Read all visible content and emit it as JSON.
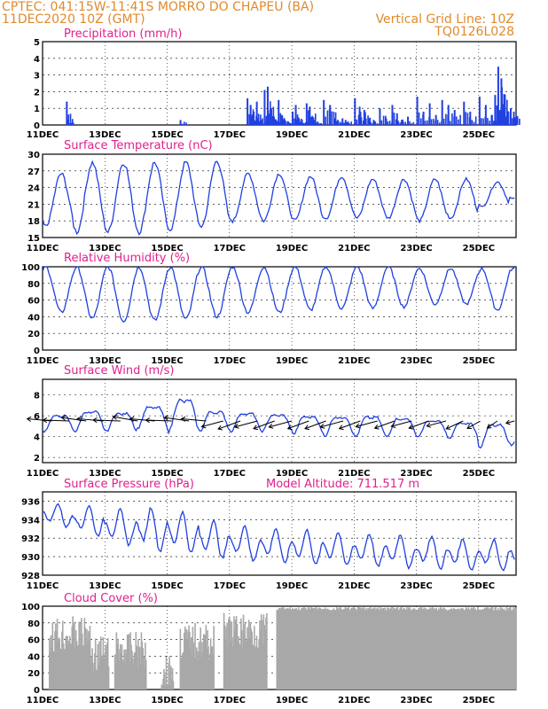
{
  "header": {
    "line1": "CPTEC:   041:15W-11:41S   MORRO DO CHAPEU (BA)",
    "line2": "11DEC2020 10Z (GMT)",
    "grid_note": "Vertical Grid Line: 10Z",
    "model_id": "TQ0126L028",
    "model_altitude": "Model Altitude: 711.517 m"
  },
  "colors": {
    "header": "#e08a2c",
    "title": "#e0208c",
    "line": "#2040e0",
    "cloud": "#a8a8a8",
    "wind": "#000000"
  },
  "x_axis": {
    "tick_labels": [
      "11DEC",
      "13DEC",
      "15DEC",
      "17DEC",
      "19DEC",
      "21DEC",
      "23DEC",
      "25DEC"
    ],
    "tick_days": [
      0,
      2,
      4,
      6,
      8,
      10,
      12,
      14
    ],
    "range_days": [
      0,
      15.2
    ]
  },
  "chart_data": [
    {
      "type": "bar",
      "title": "Precipitation (mm/h)",
      "ylim": [
        0,
        5
      ],
      "y_ticks": [
        0,
        1,
        2,
        3,
        4,
        5
      ],
      "x_days": [
        0.75,
        0.78,
        4.4,
        6.55,
        6.65,
        6.75,
        6.85,
        7.0,
        7.1,
        7.2,
        7.3,
        7.4,
        7.55,
        7.65,
        7.75,
        7.85,
        8.0,
        8.1,
        8.2,
        8.3,
        8.45,
        8.55,
        8.7,
        8.8,
        9.0,
        9.2,
        9.35,
        9.45,
        9.6,
        9.7,
        10.0,
        10.15,
        10.3,
        10.45,
        10.6,
        10.8,
        11.0,
        11.2,
        11.35,
        11.5,
        11.7,
        12.0,
        12.2,
        12.4,
        12.6,
        12.8,
        13.0,
        13.2,
        13.5,
        13.7,
        14.0,
        14.2,
        14.4,
        14.5,
        14.6,
        14.7,
        14.8,
        15.0,
        15.1
      ],
      "values": [
        1.4,
        0.3,
        0.3,
        1.6,
        1.2,
        0.8,
        1.4,
        0.3,
        2.1,
        2.3,
        1.0,
        0.5,
        1.5,
        0.6,
        0.3,
        0.2,
        0.8,
        1.2,
        0.4,
        0.3,
        1.3,
        1.1,
        0.3,
        0.2,
        1.5,
        1.2,
        0.4,
        0.3,
        0.4,
        0.3,
        1.6,
        1.1,
        0.9,
        0.4,
        0.3,
        1.0,
        0.4,
        1.2,
        0.7,
        0.3,
        0.5,
        1.7,
        0.8,
        1.3,
        0.6,
        1.5,
        1.2,
        0.9,
        1.4,
        0.8,
        1.7,
        1.2,
        0.6,
        1.8,
        3.5,
        2.8,
        1.2,
        1.0,
        0.8
      ]
    },
    {
      "type": "line",
      "title": "Surface Temperature (nC)",
      "ylim": [
        15,
        30
      ],
      "y_ticks": [
        15,
        18,
        21,
        24,
        27,
        30
      ],
      "cycle": {
        "peak_phase": 0.6,
        "min_phase": 0.25
      },
      "daily_max": [
        26.5,
        28.5,
        28.5,
        28.5,
        28.5,
        28.8,
        26.5,
        26.5,
        26.0,
        26.0,
        25.5,
        25.5,
        25.5,
        25.5,
        25.0,
        24.5
      ],
      "daily_min": [
        17.0,
        16.0,
        16.0,
        16.0,
        16.5,
        17.0,
        18.0,
        18.0,
        18.0,
        18.5,
        18.5,
        18.5,
        18.0,
        18.5,
        20.5,
        22.0
      ],
      "series": [
        {
          "values_note": ""
        }
      ]
    },
    {
      "type": "line",
      "title": "Relative Humidity (%)",
      "ylim": [
        0,
        100
      ],
      "y_ticks": [
        0,
        20,
        40,
        60,
        80,
        100
      ],
      "daily_max": [
        100,
        100,
        100,
        100,
        100,
        100,
        100,
        100,
        100,
        100,
        100,
        100,
        98,
        98,
        98,
        98
      ],
      "daily_min": [
        45,
        38,
        35,
        35,
        37,
        40,
        45,
        45,
        48,
        50,
        50,
        52,
        55,
        55,
        48,
        55
      ]
    },
    {
      "type": "line",
      "title": "Surface Wind (m/s)",
      "ylim": [
        1.5,
        9.5
      ],
      "y_ticks": [
        2,
        4,
        6,
        8
      ],
      "daily_max": [
        6.5,
        7.0,
        6.8,
        7.5,
        8.5,
        7.0,
        6.8,
        6.6,
        6.5,
        6.5,
        6.5,
        6.3,
        6.0,
        5.8,
        5.8,
        5.5
      ],
      "daily_min": [
        4.5,
        4.5,
        4.5,
        4.8,
        4.5,
        4.5,
        4.5,
        4.5,
        4.2,
        4.0,
        4.0,
        4.0,
        4.0,
        3.8,
        3.0,
        3.2
      ],
      "vectors_days": [
        0.3,
        0.85,
        1.4,
        1.95,
        2.5,
        3.05,
        3.6,
        4.15,
        4.7,
        5.25,
        5.8,
        6.35,
        6.9,
        7.45,
        8.0,
        8.55,
        9.1,
        9.65,
        10.2,
        10.75,
        11.3,
        11.85,
        12.4,
        12.95,
        13.5,
        14.05,
        14.6,
        15.15
      ],
      "vectors_dir_deg": [
        175,
        178,
        172,
        175,
        178,
        170,
        175,
        178,
        172,
        175,
        195,
        200,
        195,
        200,
        195,
        200,
        200,
        195,
        200,
        195,
        200,
        195,
        200,
        195,
        205,
        210,
        215,
        195
      ],
      "vectors_len": [
        1.0,
        1.05,
        1.0,
        1.05,
        1.1,
        1.0,
        1.0,
        1.05,
        1.0,
        1.0,
        0.9,
        0.95,
        0.95,
        0.9,
        0.95,
        0.9,
        0.9,
        0.95,
        0.9,
        0.9,
        0.85,
        0.85,
        0.85,
        0.8,
        0.75,
        0.6,
        0.5,
        0.35
      ]
    },
    {
      "type": "line",
      "title": "Surface Pressure (hPa)",
      "ylim": [
        928,
        937
      ],
      "y_ticks": [
        928,
        930,
        932,
        934,
        936
      ],
      "daily_max": [
        935.8,
        935.6,
        935.2,
        935.5,
        935.0,
        934.0,
        933.5,
        933.2,
        933.0,
        932.8,
        932.6,
        932.5,
        932.3,
        932.0,
        932.0,
        932.0
      ],
      "daily_min": [
        933.0,
        932.0,
        931.0,
        930.2,
        930.0,
        929.5,
        929.2,
        929.0,
        928.8,
        928.7,
        928.6,
        928.5,
        928.4,
        928.3,
        928.2,
        928.1
      ]
    },
    {
      "type": "bar",
      "title": "Cloud Cover (%)",
      "ylim": [
        0,
        100
      ],
      "y_ticks": [
        0,
        20,
        40,
        60,
        80,
        100
      ],
      "segments": [
        {
          "from": 0.2,
          "to": 1.5,
          "level": 88
        },
        {
          "from": 1.5,
          "to": 2.1,
          "level": 65
        },
        {
          "from": 2.3,
          "to": 3.3,
          "level": 70
        },
        {
          "from": 3.8,
          "to": 4.2,
          "level": 45
        },
        {
          "from": 4.4,
          "to": 5.5,
          "level": 80
        },
        {
          "from": 5.8,
          "to": 7.2,
          "level": 92
        },
        {
          "from": 7.5,
          "to": 15.2,
          "level": 99
        }
      ]
    }
  ]
}
